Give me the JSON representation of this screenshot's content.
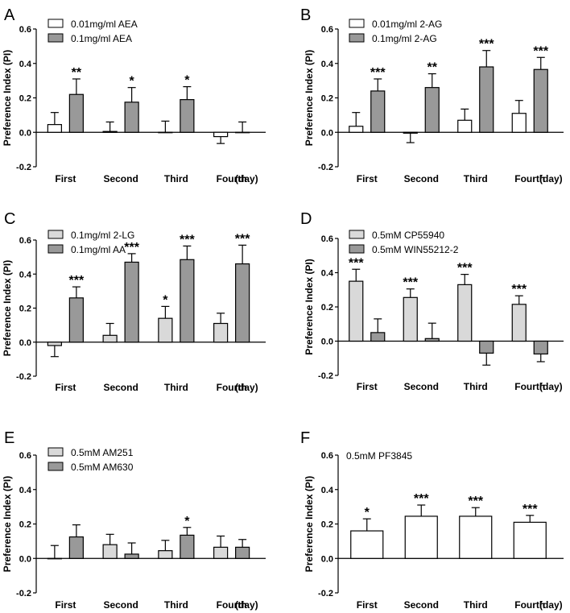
{
  "figure": {
    "panels": [
      {
        "panel_label": "A",
        "chart_data": {
          "type": "bar",
          "categories": [
            "First",
            "Second",
            "Third",
            "Fourth"
          ],
          "x_unit": "(day)",
          "ylabel": "Preference Index (PI)",
          "ylim": [
            -0.2,
            0.6
          ],
          "yticks": [
            -0.2,
            0.0,
            0.2,
            0.4,
            0.6
          ],
          "legend": "top-left",
          "series": [
            {
              "name": "0.01mg/ml AEA",
              "color": "#ffffff",
              "values": [
                0.045,
                0.005,
                0.0,
                -0.025
              ],
              "errors": [
                0.07,
                0.055,
                0.065,
                0.04
              ],
              "significance": [
                "",
                "",
                "",
                ""
              ]
            },
            {
              "name": "0.1mg/ml AEA",
              "color": "#999999",
              "values": [
                0.22,
                0.175,
                0.19,
                0.0
              ],
              "errors": [
                0.09,
                0.085,
                0.075,
                0.06
              ],
              "significance": [
                "**",
                "*",
                "*",
                ""
              ]
            }
          ]
        }
      },
      {
        "panel_label": "B",
        "chart_data": {
          "type": "bar",
          "categories": [
            "First",
            "Second",
            "Third",
            "Fourth"
          ],
          "x_unit": "(day)",
          "ylabel": "Preference Index (PI)",
          "ylim": [
            -0.2,
            0.6
          ],
          "yticks": [
            -0.2,
            0.0,
            0.2,
            0.4,
            0.6
          ],
          "legend": "top-left",
          "series": [
            {
              "name": "0.01mg/ml 2-AG",
              "color": "#ffffff",
              "values": [
                0.035,
                -0.005,
                0.07,
                0.11
              ],
              "errors": [
                0.08,
                0.055,
                0.065,
                0.075
              ],
              "significance": [
                "",
                "",
                "",
                ""
              ]
            },
            {
              "name": "0.1mg/ml 2-AG",
              "color": "#999999",
              "values": [
                0.24,
                0.26,
                0.38,
                0.365
              ],
              "errors": [
                0.07,
                0.08,
                0.095,
                0.07
              ],
              "significance": [
                "***",
                "**",
                "***",
                "***"
              ]
            }
          ]
        }
      },
      {
        "panel_label": "C",
        "chart_data": {
          "type": "bar",
          "categories": [
            "First",
            "Second",
            "Third",
            "Fourth"
          ],
          "x_unit": "(day)",
          "ylabel": "Preference Index (PI)",
          "ylim": [
            -0.2,
            0.6
          ],
          "yticks": [
            -0.2,
            0.0,
            0.2,
            0.4,
            0.6
          ],
          "legend": "top-left",
          "series": [
            {
              "name": "0.1mg/ml 2-LG",
              "color": "#d9d9d9",
              "values": [
                -0.02,
                0.04,
                0.14,
                0.11
              ],
              "errors": [
                0.065,
                0.07,
                0.07,
                0.06
              ],
              "significance": [
                "",
                "",
                "*",
                ""
              ]
            },
            {
              "name": "0.1mg/ml AA",
              "color": "#999999",
              "values": [
                0.26,
                0.47,
                0.485,
                0.46
              ],
              "errors": [
                0.065,
                0.05,
                0.08,
                0.11
              ],
              "significance": [
                "***",
                "***",
                "***",
                "***"
              ]
            }
          ]
        }
      },
      {
        "panel_label": "D",
        "chart_data": {
          "type": "bar",
          "categories": [
            "First",
            "Second",
            "Third",
            "Fourth"
          ],
          "x_unit": "(day)",
          "ylabel": "Preference Index (PI)",
          "ylim": [
            -0.2,
            0.6
          ],
          "yticks": [
            -0.2,
            0.0,
            0.2,
            0.4,
            0.6
          ],
          "legend": "top-left",
          "series": [
            {
              "name": "0.5mM CP55940",
              "color": "#d9d9d9",
              "values": [
                0.35,
                0.255,
                0.33,
                0.215
              ],
              "errors": [
                0.07,
                0.05,
                0.06,
                0.05
              ],
              "significance": [
                "***",
                "***",
                "***",
                "***"
              ]
            },
            {
              "name": "0.5mM WIN55212-2",
              "color": "#999999",
              "values": [
                0.05,
                0.015,
                -0.07,
                -0.075
              ],
              "errors": [
                0.08,
                0.09,
                0.07,
                0.045
              ],
              "significance": [
                "",
                "",
                "",
                ""
              ]
            }
          ]
        }
      },
      {
        "panel_label": "E",
        "chart_data": {
          "type": "bar",
          "categories": [
            "First",
            "Second",
            "Third",
            "Fourth"
          ],
          "x_unit": "(day)",
          "ylabel": "Preference Index (PI)",
          "ylim": [
            -0.2,
            0.6
          ],
          "yticks": [
            -0.2,
            0.0,
            0.2,
            0.4,
            0.6
          ],
          "legend": "top-left",
          "series": [
            {
              "name": "0.5mM AM251",
              "color": "#d9d9d9",
              "values": [
                0.0,
                0.08,
                0.045,
                0.065
              ],
              "errors": [
                0.075,
                0.06,
                0.06,
                0.065
              ],
              "significance": [
                "",
                "",
                "",
                ""
              ]
            },
            {
              "name": "0.5mM AM630",
              "color": "#999999",
              "values": [
                0.125,
                0.025,
                0.135,
                0.065
              ],
              "errors": [
                0.07,
                0.065,
                0.045,
                0.045
              ],
              "significance": [
                "",
                "",
                "*",
                ""
              ]
            }
          ]
        }
      },
      {
        "panel_label": "F",
        "chart_data": {
          "type": "bar",
          "categories": [
            "First",
            "Second",
            "Third",
            "Fourth"
          ],
          "x_unit": "(day)",
          "ylabel": "Preference Index (PI)",
          "ylim": [
            -0.2,
            0.6
          ],
          "yticks": [
            -0.2,
            0.0,
            0.2,
            0.4,
            0.6
          ],
          "legend": "top-left",
          "legend_style": "text-only",
          "series": [
            {
              "name": "0.5mM PF3845",
              "color": "#ffffff",
              "values": [
                0.16,
                0.245,
                0.245,
                0.21
              ],
              "errors": [
                0.07,
                0.065,
                0.05,
                0.04
              ],
              "significance": [
                "*",
                "***",
                "***",
                "***"
              ]
            }
          ]
        }
      }
    ]
  }
}
